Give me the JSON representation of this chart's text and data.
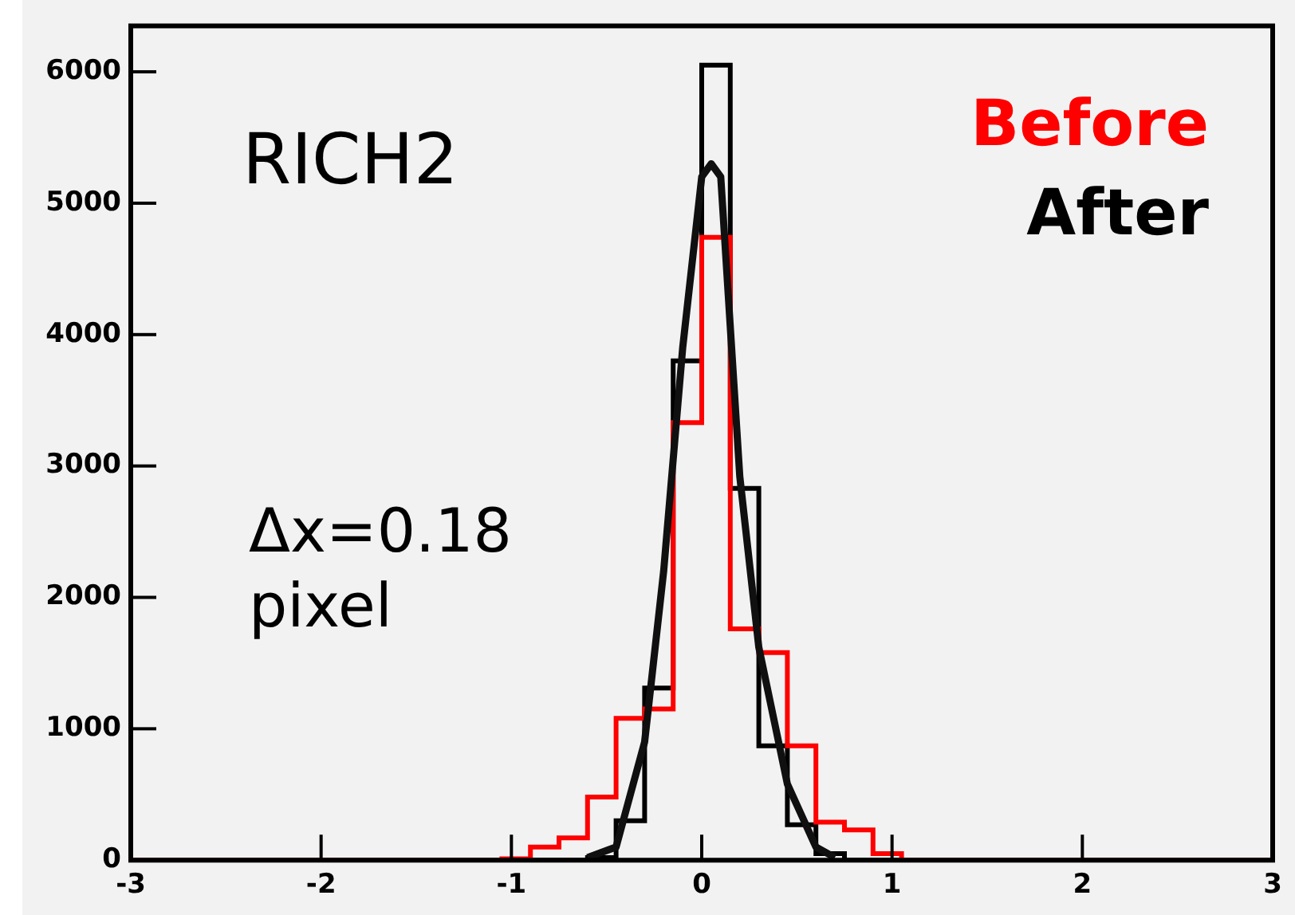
{
  "chart_data": {
    "type": "histogram",
    "bins": [
      -3,
      -2.85,
      -2.7,
      -2.55,
      -2.4,
      -2.25,
      -2.1,
      -1.95,
      -1.8,
      -1.65,
      -1.5,
      -1.35,
      -1.2,
      -1.05,
      -0.9,
      -0.75,
      -0.6,
      -0.45,
      -0.3,
      -0.15,
      0,
      0.15,
      0.3,
      0.45,
      0.6,
      0.75,
      0.9,
      1.05,
      1.2,
      1.35,
      1.5,
      1.65,
      1.8,
      1.95,
      2.1,
      2.25,
      2.4,
      2.55,
      2.7,
      2.85,
      3
    ],
    "series": [
      {
        "name": "After",
        "color": "#000000",
        "values": [
          0,
          0,
          0,
          0,
          0,
          0,
          0,
          0,
          0,
          0,
          0,
          0,
          0,
          0,
          0,
          0,
          20,
          300,
          1310,
          3800,
          6050,
          2830,
          870,
          270,
          50,
          0,
          0,
          0,
          0,
          0,
          0,
          0,
          0,
          0,
          0,
          0,
          0,
          0,
          0,
          0
        ]
      },
      {
        "name": "Before",
        "color": "#ff0000",
        "values": [
          0,
          0,
          0,
          0,
          0,
          0,
          0,
          0,
          0,
          0,
          0,
          0,
          0,
          10,
          100,
          170,
          480,
          1080,
          1150,
          3330,
          4740,
          1760,
          1580,
          870,
          290,
          230,
          50,
          0,
          0,
          0,
          0,
          0,
          0,
          0,
          0,
          0,
          0,
          0,
          0,
          0
        ]
      },
      {
        "type": "line",
        "color": "#101010",
        "x": [
          -0.6,
          -0.45,
          -0.3,
          -0.2,
          -0.1,
          0,
          0.05,
          0.1,
          0.2,
          0.3,
          0.45,
          0.6,
          0.7
        ],
        "values": [
          20,
          100,
          900,
          2200,
          3900,
          5200,
          5300,
          5200,
          2920,
          1620,
          580,
          100,
          20
        ]
      }
    ],
    "annotations": [
      "RICH2",
      "Δx=0.18",
      "pixel"
    ],
    "xlim": [
      -3,
      3
    ],
    "xticks": [
      -3,
      -2,
      -1,
      0,
      1,
      2,
      3
    ],
    "ylim": [
      0,
      6350
    ],
    "yticks": [
      0,
      1000,
      2000,
      3000,
      4000,
      5000,
      6000
    ],
    "legend": "top right",
    "grid": false
  }
}
